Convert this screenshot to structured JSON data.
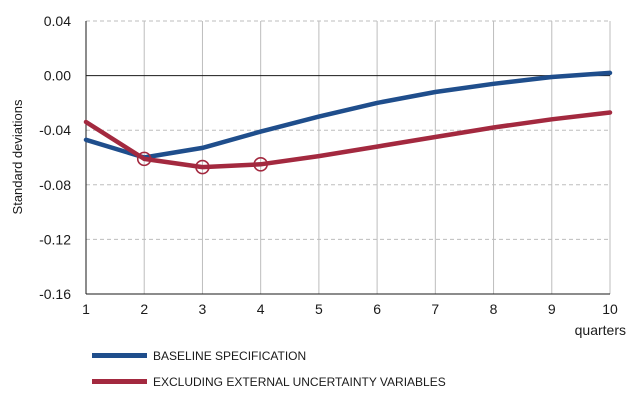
{
  "chart_data": {
    "type": "line",
    "title": "",
    "xlabel": "quarters",
    "ylabel": "Standard deviations",
    "x": [
      1,
      2,
      3,
      4,
      5,
      6,
      7,
      8,
      9,
      10
    ],
    "x_ticks": [
      "1",
      "2",
      "3",
      "4",
      "5",
      "6",
      "7",
      "8",
      "9",
      "10"
    ],
    "xlim": [
      1,
      10
    ],
    "ylim": [
      -0.16,
      0.04
    ],
    "y_ticks": [
      "0.04",
      "0.00",
      "-0.04",
      "-0.08",
      "-0.12",
      "-0.16"
    ],
    "y_tick_values": [
      0.04,
      0.0,
      -0.04,
      -0.08,
      -0.12,
      -0.16
    ],
    "grid": true,
    "grid_style": "dashed",
    "legend_position": "bottom-left",
    "series": [
      {
        "name": "BASELINE SPECIFICATION",
        "color": "#1f4e8c",
        "values": [
          -0.047,
          -0.06,
          -0.053,
          -0.041,
          -0.03,
          -0.02,
          -0.012,
          -0.006,
          -0.001,
          0.002
        ],
        "markers": []
      },
      {
        "name": "EXCLUDING EXTERNAL UNCERTAINTY VARIABLES",
        "color": "#a3293f",
        "values": [
          -0.034,
          -0.061,
          -0.067,
          -0.065,
          -0.059,
          -0.052,
          -0.045,
          -0.038,
          -0.032,
          -0.027
        ],
        "markers": [
          2,
          3,
          4
        ]
      }
    ]
  }
}
